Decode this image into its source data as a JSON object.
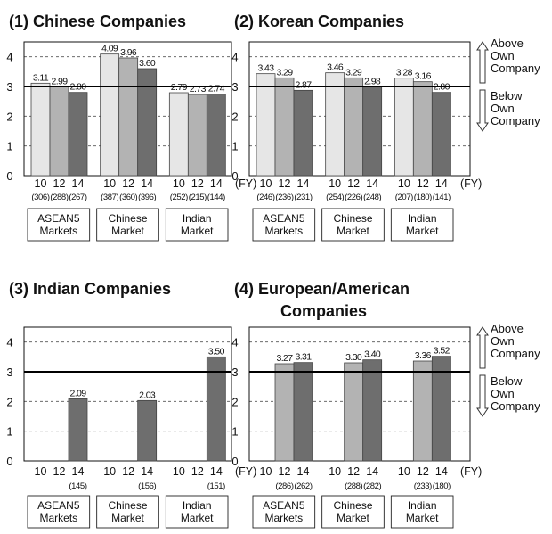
{
  "colors": {
    "fy10": "#e6e6e6",
    "fy12": "#b3b3b3",
    "fy14": "#6e6e6e",
    "stroke": "#444444",
    "frame": "#111111"
  },
  "legend": {
    "above": [
      "Above",
      "Own",
      "Company"
    ],
    "below": [
      "Below",
      "Own",
      "Company"
    ]
  },
  "chart_data": [
    {
      "type": "bar",
      "title": "(1) Chinese Companies",
      "ylim": [
        0,
        4.5
      ],
      "yticks": [
        "0",
        "1",
        "2",
        "3",
        "4"
      ],
      "years": [
        "10",
        "12",
        "14"
      ],
      "fy_label": "(FY)",
      "markets": [
        {
          "name": [
            "ASEAN5",
            "Markets"
          ],
          "values": [
            3.11,
            2.99,
            2.8
          ],
          "labels": [
            "3.11",
            "2.99",
            "2.80"
          ],
          "n": [
            "(306)",
            "(288)",
            "(267)"
          ]
        },
        {
          "name": [
            "Chinese",
            "Market"
          ],
          "values": [
            4.09,
            3.96,
            3.6
          ],
          "labels": [
            "4.09",
            "3.96",
            "3.60"
          ],
          "n": [
            "(387)",
            "(360)",
            "(396)"
          ]
        },
        {
          "name": [
            "Indian",
            "Market"
          ],
          "values": [
            2.79,
            2.73,
            2.74
          ],
          "labels": [
            "2.79",
            "2.73",
            "2.74"
          ],
          "n": [
            "(252)",
            "(215)",
            "(144)"
          ]
        }
      ]
    },
    {
      "type": "bar",
      "title": "(2) Korean Companies",
      "ylim": [
        0,
        4.5
      ],
      "yticks": [
        "0",
        "1",
        "2",
        "3",
        "4"
      ],
      "years": [
        "10",
        "12",
        "14"
      ],
      "fy_label": "(FY)",
      "markets": [
        {
          "name": [
            "ASEAN5",
            "Markets"
          ],
          "values": [
            3.43,
            3.29,
            2.87
          ],
          "labels": [
            "3.43",
            "3.29",
            "2.87"
          ],
          "n": [
            "(246)",
            "(236)",
            "(231)"
          ]
        },
        {
          "name": [
            "Chinese",
            "Market"
          ],
          "values": [
            3.46,
            3.29,
            2.98
          ],
          "labels": [
            "3.46",
            "3.29",
            "2.98"
          ],
          "n": [
            "(254)",
            "(226)",
            "(248)"
          ]
        },
        {
          "name": [
            "Indian",
            "Market"
          ],
          "values": [
            3.28,
            3.16,
            2.8
          ],
          "labels": [
            "3.28",
            "3.16",
            "2.80"
          ],
          "n": [
            "(207)",
            "(180)",
            "(141)"
          ]
        }
      ]
    },
    {
      "type": "bar",
      "title": "(3) Indian Companies",
      "ylim": [
        0,
        4.5
      ],
      "yticks": [
        "0",
        "1",
        "2",
        "3",
        "4"
      ],
      "years": [
        "10",
        "12",
        "14"
      ],
      "fy_label": "(FY)",
      "markets": [
        {
          "name": [
            "ASEAN5",
            "Markets"
          ],
          "values": [
            null,
            null,
            2.09
          ],
          "labels": [
            "",
            "",
            "2.09"
          ],
          "n": [
            "",
            "",
            "(145)"
          ]
        },
        {
          "name": [
            "Chinese",
            "Market"
          ],
          "values": [
            null,
            null,
            2.03
          ],
          "labels": [
            "",
            "",
            "2.03"
          ],
          "n": [
            "",
            "",
            "(156)"
          ]
        },
        {
          "name": [
            "Indian",
            "Market"
          ],
          "values": [
            null,
            null,
            3.5
          ],
          "labels": [
            "",
            "",
            "3.50"
          ],
          "n": [
            "",
            "",
            "(151)"
          ]
        }
      ]
    },
    {
      "type": "bar",
      "title": [
        "(4) European/American",
        "Companies"
      ],
      "ylim": [
        0,
        4.5
      ],
      "yticks": [
        "0",
        "1",
        "2",
        "3",
        "4"
      ],
      "years": [
        "10",
        "12",
        "14"
      ],
      "fy_label": "(FY)",
      "markets": [
        {
          "name": [
            "ASEAN5",
            "Markets"
          ],
          "values": [
            null,
            3.27,
            3.31
          ],
          "labels": [
            "",
            "3.27",
            "3.31"
          ],
          "n": [
            "",
            "(286)",
            "(262)"
          ]
        },
        {
          "name": [
            "Chinese",
            "Market"
          ],
          "values": [
            null,
            3.3,
            3.4
          ],
          "labels": [
            "",
            "3.30",
            "3.40"
          ],
          "n": [
            "",
            "(288)",
            "(282)"
          ]
        },
        {
          "name": [
            "Indian",
            "Market"
          ],
          "values": [
            null,
            3.36,
            3.52
          ],
          "labels": [
            "",
            "3.36",
            "3.52"
          ],
          "n": [
            "",
            "(233)",
            "(180)"
          ]
        }
      ]
    }
  ]
}
